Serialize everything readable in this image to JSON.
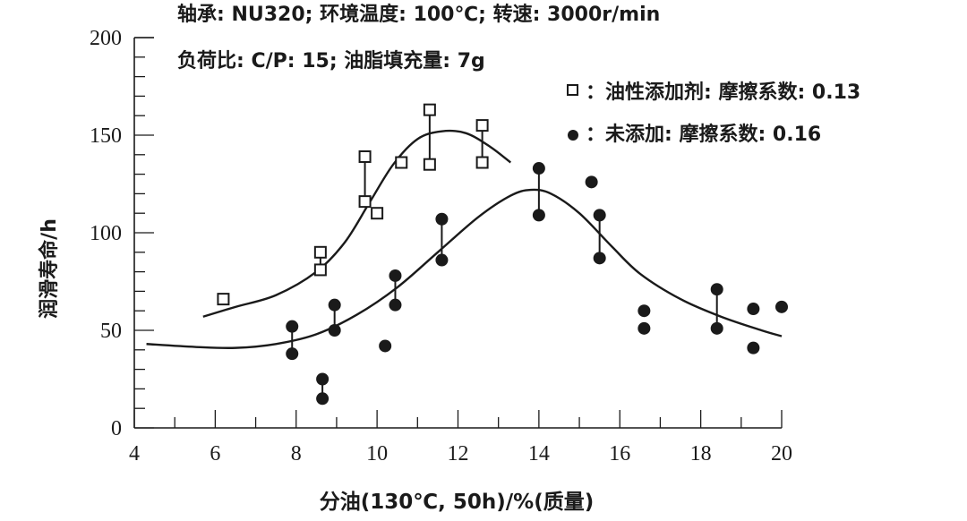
{
  "chart_data": {
    "type": "scatter",
    "annotations": [
      "轴承: NU320; 环境温度: 100℃; 转速: 3000r/min",
      "负荷比: C/P: 15; 油脂填充量: 7g"
    ],
    "xlabel": "分油(130℃, 50h)/%(质量)",
    "ylabel": "润滑寿命/h",
    "xlim": [
      4,
      20
    ],
    "ylim": [
      0,
      200
    ],
    "xticks": [
      "4",
      "6",
      "8",
      "10",
      "12",
      "14",
      "16",
      "18",
      "20"
    ],
    "yticks": [
      "0",
      "50",
      "100",
      "150",
      "200"
    ],
    "grid": false,
    "legend_position": "top-right",
    "series": [
      {
        "name": "：油性添加剂: 摩擦系数: 0.13",
        "marker": "open-square",
        "color": "#1a1a1a",
        "points": [
          [
            6.2,
            66
          ],
          [
            8.6,
            90
          ],
          [
            8.6,
            81
          ],
          [
            9.7,
            139
          ],
          [
            9.7,
            116
          ],
          [
            10.0,
            110
          ],
          [
            10.6,
            136
          ],
          [
            11.3,
            163
          ],
          [
            11.3,
            135
          ],
          [
            12.6,
            155
          ],
          [
            12.6,
            136
          ]
        ],
        "ranges": [
          [
            8.6,
            81,
            90
          ],
          [
            9.7,
            116,
            139
          ],
          [
            11.3,
            135,
            163
          ],
          [
            12.6,
            136,
            155
          ]
        ],
        "fit_curve": [
          [
            5.7,
            57
          ],
          [
            6.5,
            62
          ],
          [
            7.5,
            68
          ],
          [
            8.5,
            80
          ],
          [
            9.2,
            95
          ],
          [
            9.8,
            115
          ],
          [
            10.4,
            135
          ],
          [
            11,
            148
          ],
          [
            11.6,
            152
          ],
          [
            12.2,
            151
          ],
          [
            12.8,
            144
          ],
          [
            13.3,
            136
          ]
        ]
      },
      {
        "name": "：未添加: 摩擦系数: 0.16",
        "marker": "filled-circle",
        "color": "#1a1a1a",
        "points": [
          [
            7.9,
            52
          ],
          [
            7.9,
            38
          ],
          [
            8.65,
            25
          ],
          [
            8.65,
            15
          ],
          [
            8.95,
            63
          ],
          [
            8.95,
            50
          ],
          [
            10.2,
            42
          ],
          [
            10.45,
            78
          ],
          [
            10.45,
            63
          ],
          [
            11.6,
            107
          ],
          [
            11.6,
            86
          ],
          [
            14.0,
            133
          ],
          [
            14.0,
            109
          ],
          [
            15.3,
            126
          ],
          [
            15.5,
            109
          ],
          [
            15.5,
            87
          ],
          [
            16.6,
            60
          ],
          [
            16.6,
            51
          ],
          [
            18.4,
            71
          ],
          [
            18.4,
            51
          ],
          [
            19.3,
            61
          ],
          [
            19.3,
            41
          ],
          [
            20.0,
            62
          ]
        ],
        "ranges": [
          [
            7.9,
            38,
            52
          ],
          [
            8.65,
            15,
            25
          ],
          [
            8.95,
            50,
            63
          ],
          [
            10.45,
            63,
            78
          ],
          [
            11.6,
            86,
            107
          ],
          [
            14.0,
            109,
            133
          ],
          [
            15.5,
            87,
            109
          ],
          [
            18.4,
            51,
            71
          ]
        ],
        "fit_curve": [
          [
            4.3,
            43
          ],
          [
            5.5,
            41.5
          ],
          [
            6.5,
            41
          ],
          [
            7.5,
            43
          ],
          [
            8.5,
            48
          ],
          [
            9.5,
            58
          ],
          [
            10.5,
            72
          ],
          [
            11.5,
            90
          ],
          [
            12.5,
            108
          ],
          [
            13.3,
            119
          ],
          [
            13.8,
            122
          ],
          [
            14.3,
            120
          ],
          [
            15,
            110
          ],
          [
            15.8,
            93
          ],
          [
            16.5,
            79
          ],
          [
            17.5,
            66
          ],
          [
            18.5,
            57
          ],
          [
            19.5,
            50
          ],
          [
            20,
            47
          ]
        ]
      }
    ]
  }
}
